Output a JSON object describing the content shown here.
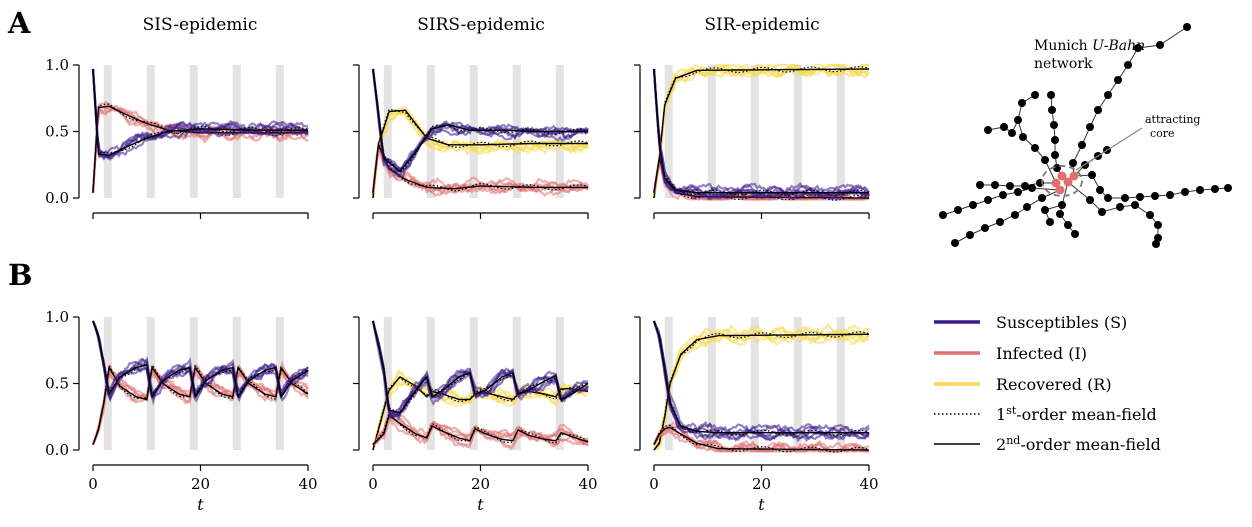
{
  "panel_labels": {
    "a": "A",
    "b": "B"
  },
  "column_titles": [
    "SIS-epidemic",
    "SIRS-epidemic",
    "SIR-epidemic"
  ],
  "axis": {
    "xlabel": "t",
    "xlim": [
      0,
      40
    ],
    "ylim": [
      0,
      1
    ],
    "xticks": [
      "0",
      "20",
      "40"
    ],
    "yticks": [
      "0.0",
      "0.5",
      "1.0"
    ]
  },
  "shaded_periods": [
    [
      2,
      3.5
    ],
    [
      10,
      11.5
    ],
    [
      18,
      19.5
    ],
    [
      26,
      27.5
    ],
    [
      34,
      35.5
    ]
  ],
  "colors": {
    "susceptible": "#3b1c8c",
    "infected": "#e07070",
    "recovered": "#f7d84a",
    "shade": "#e3e3e3",
    "network_core": "#e07070"
  },
  "network": {
    "title_line1": "Munich ",
    "title_italic": "U-Bahn",
    "title_line2": "network",
    "annotation": [
      "attracting",
      "core"
    ]
  },
  "legend": {
    "entries": [
      {
        "label": "Susceptibles (S)",
        "style": "susceptible"
      },
      {
        "label": "Infected (I)",
        "style": "infected"
      },
      {
        "label": "Recovered (R)",
        "style": "recovered"
      },
      {
        "prefix": "1",
        "sup": "st",
        "label": "-order mean-field",
        "style": "dotted"
      },
      {
        "prefix": "2",
        "sup": "nd",
        "label": "-order mean-field",
        "style": "solid"
      }
    ]
  },
  "chart_data": [
    {
      "type": "line",
      "row": "A",
      "title": "SIS-epidemic",
      "xlabel": "",
      "x_range": [
        0,
        40
      ],
      "ylim": [
        0,
        1
      ],
      "series": [
        {
          "name": "Susceptibles (S)",
          "key": "S",
          "values": [
            [
              0,
              0.97
            ],
            [
              1,
              0.33
            ],
            [
              3,
              0.32
            ],
            [
              6,
              0.38
            ],
            [
              10,
              0.45
            ],
            [
              14,
              0.5
            ],
            [
              20,
              0.52
            ],
            [
              30,
              0.51
            ],
            [
              40,
              0.51
            ]
          ]
        },
        {
          "name": "Infected (I)",
          "key": "I",
          "values": [
            [
              0,
              0.04
            ],
            [
              1,
              0.68
            ],
            [
              3,
              0.69
            ],
            [
              6,
              0.63
            ],
            [
              10,
              0.56
            ],
            [
              14,
              0.51
            ],
            [
              20,
              0.49
            ],
            [
              30,
              0.49
            ],
            [
              40,
              0.49
            ]
          ]
        }
      ]
    },
    {
      "type": "line",
      "row": "A",
      "title": "SIRS-epidemic",
      "xlabel": "",
      "x_range": [
        0,
        40
      ],
      "ylim": [
        0,
        1
      ],
      "series": [
        {
          "name": "Susceptibles (S)",
          "key": "S",
          "values": [
            [
              0,
              0.97
            ],
            [
              2,
              0.3
            ],
            [
              5,
              0.2
            ],
            [
              8,
              0.35
            ],
            [
              11,
              0.52
            ],
            [
              14,
              0.55
            ],
            [
              18,
              0.51
            ],
            [
              24,
              0.51
            ],
            [
              30,
              0.5
            ],
            [
              40,
              0.5
            ]
          ]
        },
        {
          "name": "Infected (I)",
          "key": "I",
          "values": [
            [
              0,
              0.04
            ],
            [
              1,
              0.4
            ],
            [
              3,
              0.22
            ],
            [
              6,
              0.14
            ],
            [
              10,
              0.08
            ],
            [
              15,
              0.07
            ],
            [
              20,
              0.09
            ],
            [
              30,
              0.08
            ],
            [
              40,
              0.08
            ]
          ]
        },
        {
          "name": "Recovered (R)",
          "key": "R",
          "values": [
            [
              0,
              0.0
            ],
            [
              1,
              0.4
            ],
            [
              3,
              0.65
            ],
            [
              6,
              0.66
            ],
            [
              10,
              0.45
            ],
            [
              14,
              0.4
            ],
            [
              20,
              0.4
            ],
            [
              30,
              0.41
            ],
            [
              40,
              0.41
            ]
          ]
        }
      ]
    },
    {
      "type": "line",
      "row": "A",
      "title": "SIR-epidemic",
      "xlabel": "",
      "x_range": [
        0,
        40
      ],
      "ylim": [
        0,
        1
      ],
      "series": [
        {
          "name": "Susceptibles (S)",
          "key": "S",
          "values": [
            [
              0,
              0.97
            ],
            [
              1,
              0.4
            ],
            [
              2,
              0.15
            ],
            [
              4,
              0.06
            ],
            [
              8,
              0.04
            ],
            [
              40,
              0.04
            ]
          ]
        },
        {
          "name": "Infected (I)",
          "key": "I",
          "values": [
            [
              0,
              0.04
            ],
            [
              1,
              0.3
            ],
            [
              2,
              0.15
            ],
            [
              4,
              0.04
            ],
            [
              8,
              0.01
            ],
            [
              40,
              0.0
            ]
          ]
        },
        {
          "name": "Recovered (R)",
          "key": "R",
          "values": [
            [
              0,
              0.0
            ],
            [
              1,
              0.3
            ],
            [
              2,
              0.7
            ],
            [
              4,
              0.9
            ],
            [
              8,
              0.96
            ],
            [
              40,
              0.97
            ]
          ]
        }
      ]
    },
    {
      "type": "line",
      "row": "B",
      "title": "SIS-epidemic",
      "xlabel": "t",
      "x_range": [
        0,
        40
      ],
      "ylim": [
        0,
        1
      ],
      "series": [
        {
          "name": "Susceptibles (S)",
          "key": "S",
          "values": [
            [
              0,
              0.97
            ],
            [
              1,
              0.85
            ],
            [
              2,
              0.65
            ],
            [
              3,
              0.42
            ],
            [
              5,
              0.55
            ],
            [
              8,
              0.62
            ],
            [
              10,
              0.64
            ],
            [
              11,
              0.4
            ],
            [
              13,
              0.52
            ],
            [
              16,
              0.6
            ],
            [
              18,
              0.62
            ],
            [
              19,
              0.4
            ],
            [
              21,
              0.52
            ],
            [
              24,
              0.6
            ],
            [
              26,
              0.62
            ],
            [
              27,
              0.4
            ],
            [
              29,
              0.52
            ],
            [
              32,
              0.6
            ],
            [
              34,
              0.62
            ],
            [
              35,
              0.4
            ],
            [
              37,
              0.52
            ],
            [
              40,
              0.6
            ]
          ]
        },
        {
          "name": "Infected (I)",
          "key": "I",
          "values": [
            [
              0,
              0.04
            ],
            [
              1,
              0.15
            ],
            [
              2,
              0.35
            ],
            [
              3,
              0.62
            ],
            [
              5,
              0.48
            ],
            [
              8,
              0.4
            ],
            [
              10,
              0.38
            ],
            [
              11,
              0.62
            ],
            [
              13,
              0.5
            ],
            [
              16,
              0.42
            ],
            [
              18,
              0.4
            ],
            [
              19,
              0.62
            ],
            [
              21,
              0.5
            ],
            [
              24,
              0.42
            ],
            [
              26,
              0.4
            ],
            [
              27,
              0.62
            ],
            [
              29,
              0.5
            ],
            [
              32,
              0.42
            ],
            [
              34,
              0.4
            ],
            [
              35,
              0.62
            ],
            [
              37,
              0.5
            ],
            [
              40,
              0.42
            ]
          ]
        }
      ]
    },
    {
      "type": "line",
      "row": "B",
      "title": "SIRS-epidemic",
      "xlabel": "t",
      "x_range": [
        0,
        40
      ],
      "ylim": [
        0,
        1
      ],
      "series": [
        {
          "name": "Susceptibles (S)",
          "key": "S",
          "values": [
            [
              0,
              0.97
            ],
            [
              2,
              0.6
            ],
            [
              3,
              0.3
            ],
            [
              5,
              0.28
            ],
            [
              8,
              0.45
            ],
            [
              10,
              0.55
            ],
            [
              11,
              0.4
            ],
            [
              13,
              0.45
            ],
            [
              16,
              0.55
            ],
            [
              18,
              0.58
            ],
            [
              19,
              0.42
            ],
            [
              21,
              0.45
            ],
            [
              24,
              0.55
            ],
            [
              26,
              0.58
            ],
            [
              27,
              0.42
            ],
            [
              29,
              0.45
            ],
            [
              32,
              0.52
            ],
            [
              34,
              0.56
            ],
            [
              35,
              0.38
            ],
            [
              37,
              0.42
            ],
            [
              40,
              0.5
            ]
          ]
        },
        {
          "name": "Infected (I)",
          "key": "I",
          "values": [
            [
              0,
              0.04
            ],
            [
              2,
              0.12
            ],
            [
              3,
              0.26
            ],
            [
              5,
              0.2
            ],
            [
              8,
              0.12
            ],
            [
              10,
              0.09
            ],
            [
              11,
              0.18
            ],
            [
              13,
              0.14
            ],
            [
              16,
              0.09
            ],
            [
              18,
              0.07
            ],
            [
              19,
              0.16
            ],
            [
              21,
              0.12
            ],
            [
              24,
              0.08
            ],
            [
              26,
              0.07
            ],
            [
              27,
              0.15
            ],
            [
              29,
              0.11
            ],
            [
              32,
              0.08
            ],
            [
              34,
              0.07
            ],
            [
              35,
              0.13
            ],
            [
              37,
              0.1
            ],
            [
              40,
              0.06
            ]
          ]
        },
        {
          "name": "Recovered (R)",
          "key": "R",
          "values": [
            [
              0,
              0.0
            ],
            [
              2,
              0.3
            ],
            [
              3,
              0.45
            ],
            [
              5,
              0.55
            ],
            [
              8,
              0.48
            ],
            [
              10,
              0.4
            ],
            [
              11,
              0.44
            ],
            [
              13,
              0.42
            ],
            [
              16,
              0.38
            ],
            [
              18,
              0.38
            ],
            [
              19,
              0.42
            ],
            [
              21,
              0.43
            ],
            [
              24,
              0.4
            ],
            [
              26,
              0.38
            ],
            [
              27,
              0.42
            ],
            [
              29,
              0.44
            ],
            [
              32,
              0.42
            ],
            [
              34,
              0.4
            ],
            [
              35,
              0.46
            ],
            [
              37,
              0.46
            ],
            [
              40,
              0.44
            ]
          ]
        }
      ]
    },
    {
      "type": "line",
      "row": "B",
      "title": "SIR-epidemic",
      "xlabel": "t",
      "x_range": [
        0,
        40
      ],
      "ylim": [
        0,
        1
      ],
      "series": [
        {
          "name": "Susceptibles (S)",
          "key": "S",
          "values": [
            [
              0,
              0.97
            ],
            [
              1,
              0.85
            ],
            [
              2,
              0.6
            ],
            [
              3,
              0.35
            ],
            [
              5,
              0.18
            ],
            [
              8,
              0.14
            ],
            [
              12,
              0.13
            ],
            [
              40,
              0.13
            ]
          ]
        },
        {
          "name": "Infected (I)",
          "key": "I",
          "values": [
            [
              0,
              0.04
            ],
            [
              1,
              0.12
            ],
            [
              2,
              0.16
            ],
            [
              3,
              0.17
            ],
            [
              5,
              0.12
            ],
            [
              8,
              0.05
            ],
            [
              12,
              0.01
            ],
            [
              40,
              0.0
            ]
          ]
        },
        {
          "name": "Recovered (R)",
          "key": "R",
          "values": [
            [
              0,
              0.0
            ],
            [
              1,
              0.05
            ],
            [
              2,
              0.25
            ],
            [
              3,
              0.5
            ],
            [
              5,
              0.72
            ],
            [
              8,
              0.83
            ],
            [
              12,
              0.86
            ],
            [
              40,
              0.87
            ]
          ]
        }
      ]
    }
  ]
}
